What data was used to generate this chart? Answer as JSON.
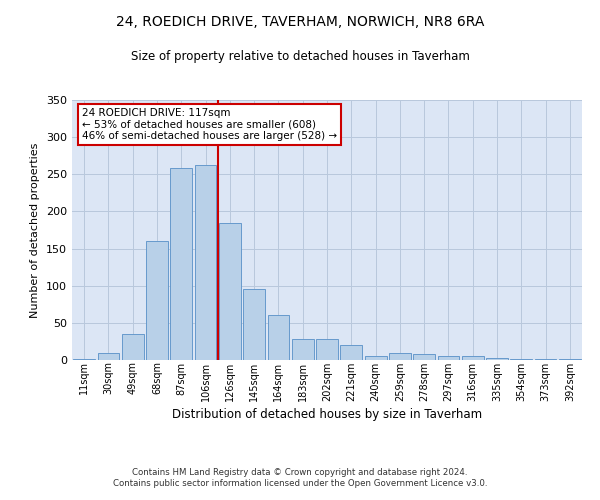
{
  "title": "24, ROEDICH DRIVE, TAVERHAM, NORWICH, NR8 6RA",
  "subtitle": "Size of property relative to detached houses in Taverham",
  "xlabel": "Distribution of detached houses by size in Taverham",
  "ylabel": "Number of detached properties",
  "categories": [
    "11sqm",
    "30sqm",
    "49sqm",
    "68sqm",
    "87sqm",
    "106sqm",
    "126sqm",
    "145sqm",
    "164sqm",
    "183sqm",
    "202sqm",
    "221sqm",
    "240sqm",
    "259sqm",
    "278sqm",
    "297sqm",
    "316sqm",
    "335sqm",
    "354sqm",
    "373sqm",
    "392sqm"
  ],
  "values": [
    2,
    10,
    35,
    160,
    258,
    262,
    185,
    95,
    60,
    28,
    28,
    20,
    6,
    10,
    8,
    6,
    5,
    3,
    2,
    1,
    2
  ],
  "bar_color": "#b8d0e8",
  "bar_edge_color": "#6699cc",
  "vline_x": 5.5,
  "vline_color": "#cc0000",
  "annotation_text": "24 ROEDICH DRIVE: 117sqm\n← 53% of detached houses are smaller (608)\n46% of semi-detached houses are larger (528) →",
  "annotation_box_color": "#ffffff",
  "annotation_box_edge": "#cc0000",
  "ylim": [
    0,
    350
  ],
  "yticks": [
    0,
    50,
    100,
    150,
    200,
    250,
    300,
    350
  ],
  "background_color": "#dce6f5",
  "footer_line1": "Contains HM Land Registry data © Crown copyright and database right 2024.",
  "footer_line2": "Contains public sector information licensed under the Open Government Licence v3.0."
}
